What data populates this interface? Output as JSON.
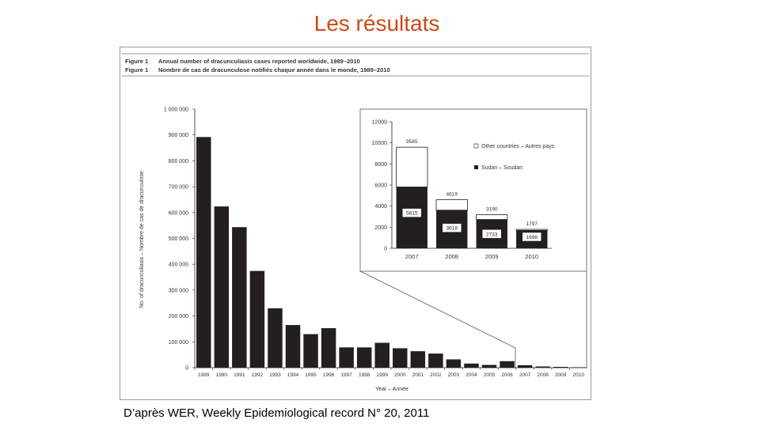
{
  "slide": {
    "title": "Les résultats",
    "caption": "D’après WER, Weekly Epidemiological record N° 20, 2011"
  },
  "colors": {
    "title": "#cc4a17",
    "bar": "#231f20",
    "frame": "#9a9a9a"
  },
  "chart_data": [
    {
      "type": "bar",
      "title_en": "Annual number of dracunculiasis cases reported worldwide, 1989–2010",
      "title_fr": "Nombre de cas de dracunculose notifiés chaque année dans le monde, 1989–2010",
      "figure_label_en": "Figure 1",
      "figure_label_fr": "Figure 1",
      "xlabel": "Year – Année",
      "ylabel": "No. of dracunculiasis – Nombre de cas de dracunculose",
      "ylim": [
        0,
        1000000
      ],
      "yticks": [
        "0",
        "100 000",
        "200 000",
        "300 000",
        "400 000",
        "500 000",
        "600 000",
        "700 000",
        "800 000",
        "900 000",
        "1 000 000"
      ],
      "categories": [
        "1989",
        "1990",
        "1991",
        "1992",
        "1993",
        "1994",
        "1995",
        "1996",
        "1997",
        "1998",
        "1999",
        "2000",
        "2001",
        "2002",
        "2003",
        "2004",
        "2005",
        "2006",
        "2007",
        "2008",
        "2009",
        "2010"
      ],
      "values": [
        892055,
        623579,
        543585,
        374202,
        229773,
        164973,
        129852,
        152814,
        78557,
        78388,
        96293,
        75223,
        63717,
        54638,
        32193,
        16026,
        10674,
        25217,
        9585,
        4619,
        3190,
        1797
      ]
    },
    {
      "type": "bar",
      "stacked": true,
      "ylim": [
        0,
        12000
      ],
      "yticks": [
        "0",
        "2000",
        "4000",
        "6000",
        "8000",
        "10000",
        "12000"
      ],
      "categories": [
        "2007",
        "2008",
        "2009",
        "2010"
      ],
      "totals": [
        "9585",
        "4619",
        "3190",
        "1797"
      ],
      "series": [
        {
          "name": "Sudan – Soudan",
          "values": [
            5815,
            3618,
            2733,
            1698
          ],
          "labels": [
            "5815",
            "3618",
            "2733",
            "1698"
          ]
        },
        {
          "name": "Other countries – Autres pays",
          "values": [
            3770,
            1001,
            457,
            99
          ]
        }
      ],
      "legend": [
        "Other countries – Autres pays",
        "Sudan – Soudan"
      ],
      "legend_position": "right"
    }
  ]
}
